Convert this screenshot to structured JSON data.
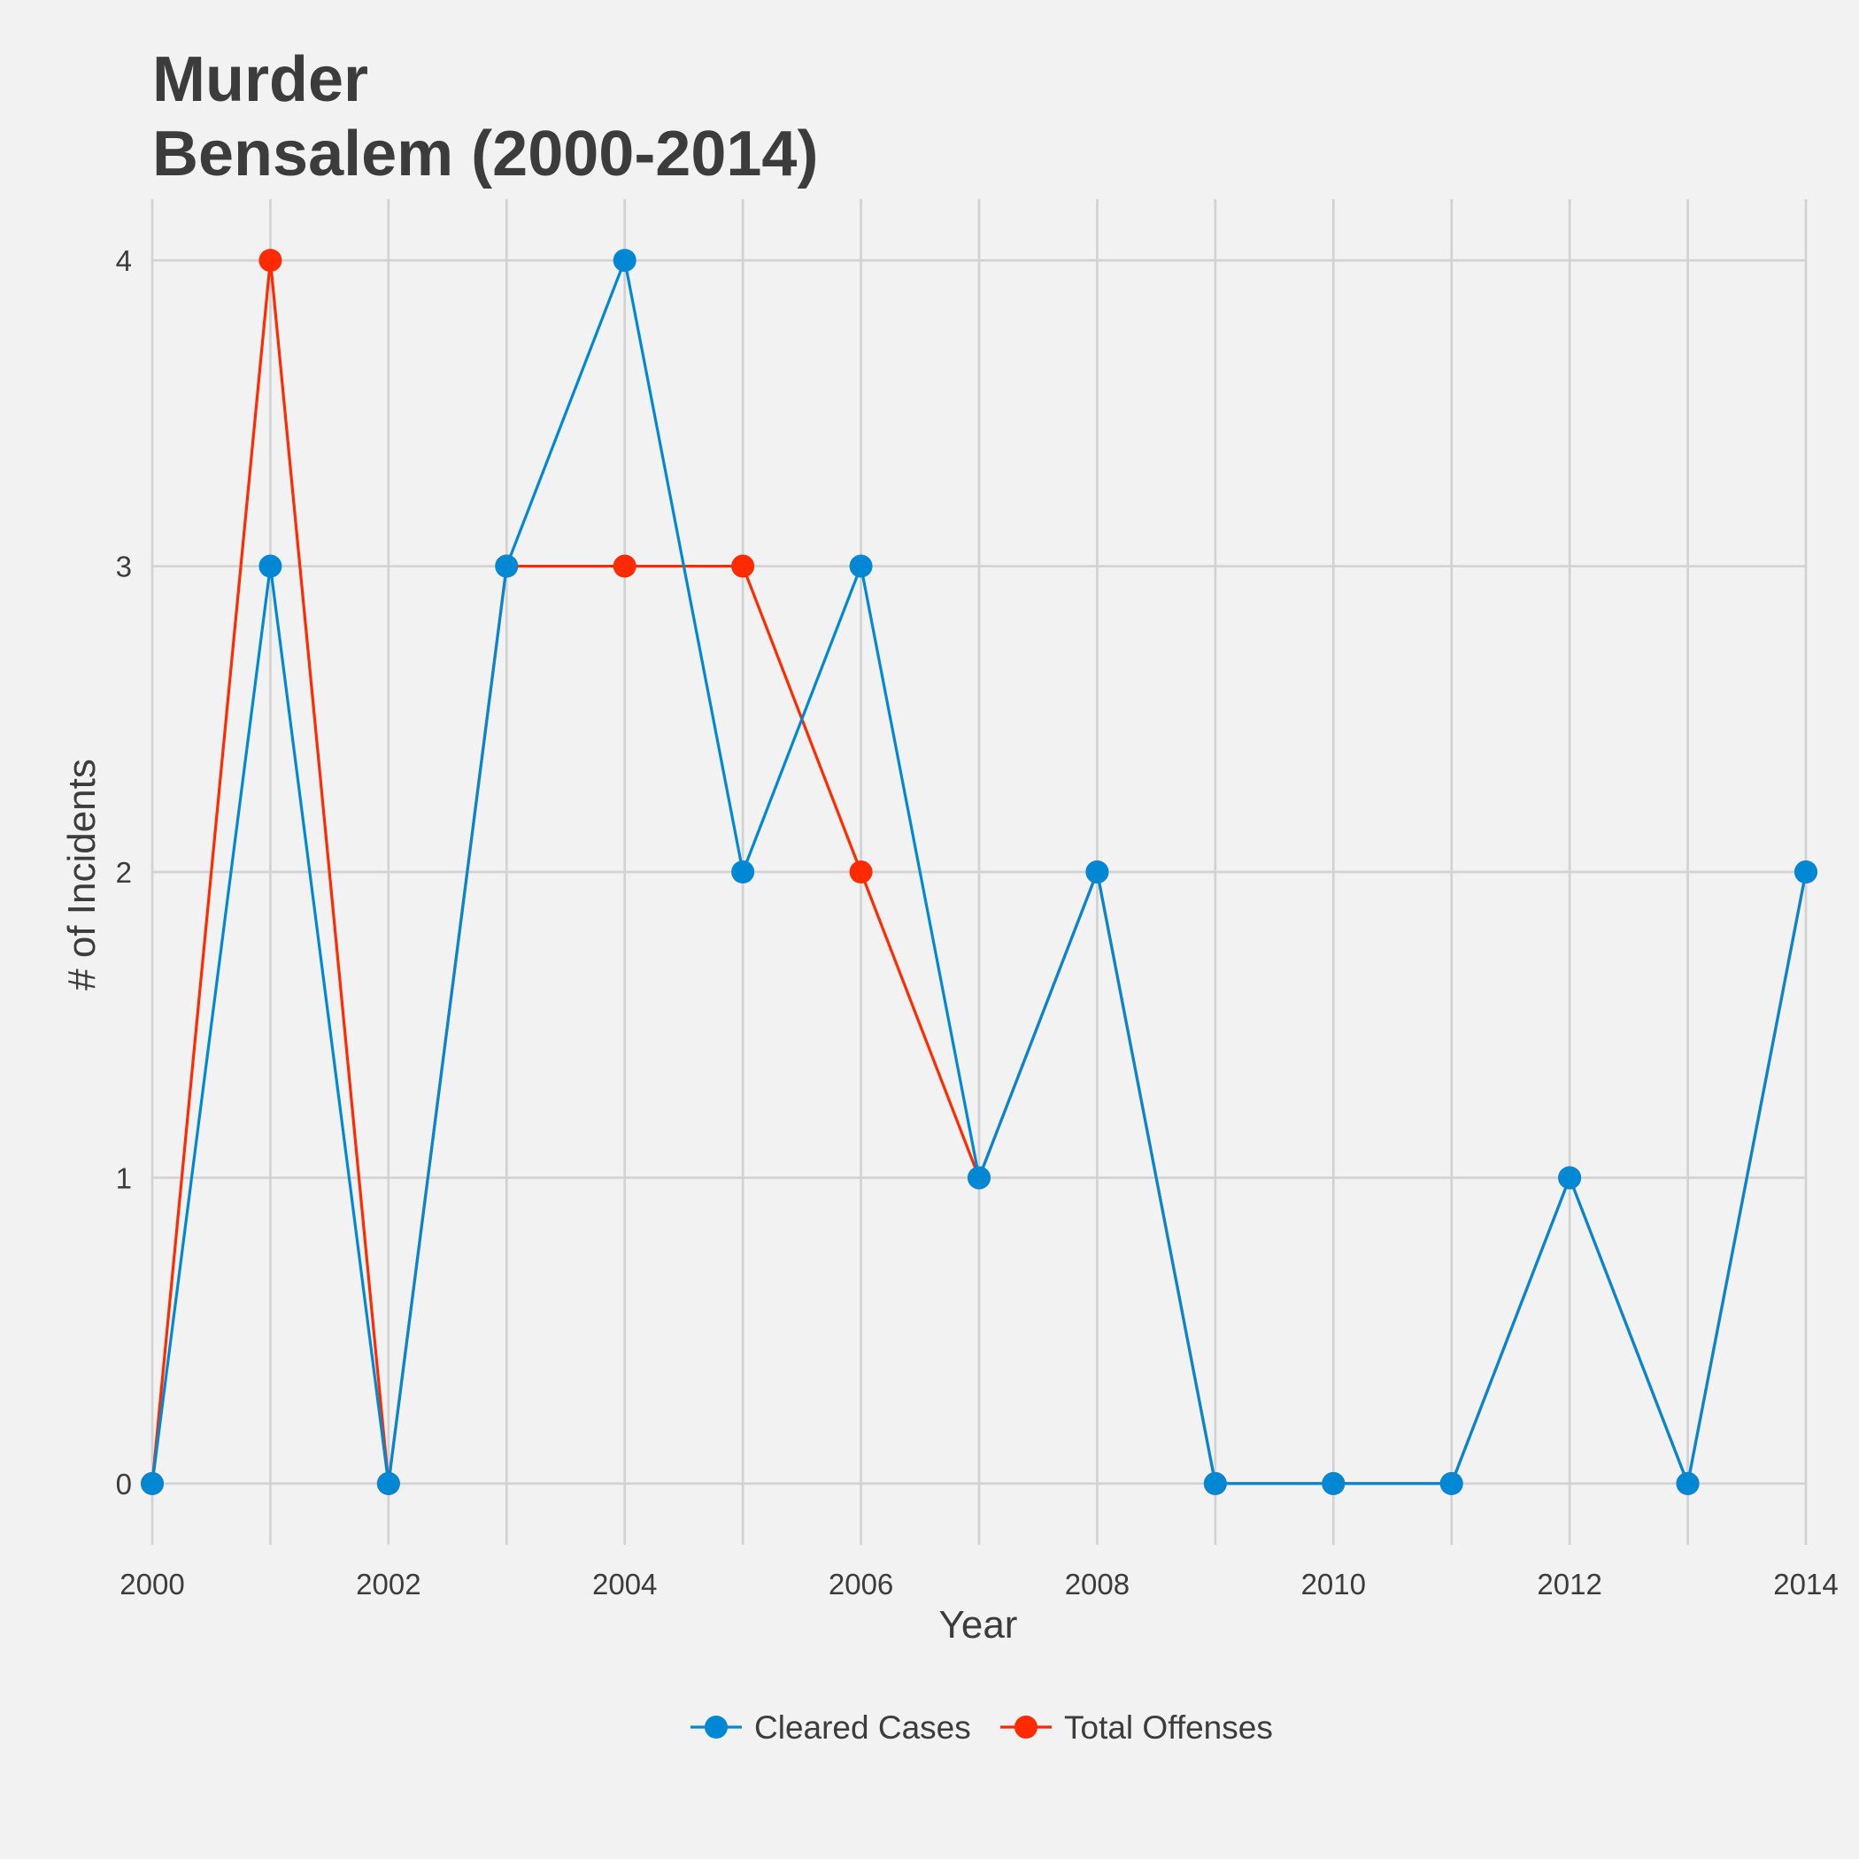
{
  "chart_data": {
    "type": "line",
    "title": "Murder",
    "subtitle": "Bensalem (2000-2014)",
    "xlabel": "Year",
    "ylabel": "# of Incidents",
    "x": [
      2000,
      2001,
      2002,
      2003,
      2004,
      2005,
      2006,
      2007,
      2008,
      2009,
      2010,
      2011,
      2012,
      2013,
      2014
    ],
    "x_ticks": [
      2000,
      2002,
      2004,
      2006,
      2008,
      2010,
      2012,
      2014
    ],
    "y_ticks": [
      0,
      1,
      2,
      3,
      4
    ],
    "xlim": [
      2000,
      2014
    ],
    "ylim": [
      -0.2,
      4.2
    ],
    "grid": true,
    "legend_position": "bottom",
    "series": [
      {
        "name": "Total Offenses",
        "color": "#ff2a00",
        "values": [
          0,
          4,
          0,
          3,
          3,
          3,
          2,
          1,
          2,
          0,
          0,
          0,
          1,
          0,
          2
        ]
      },
      {
        "name": "Cleared Cases",
        "color": "#0088d4",
        "values": [
          0,
          3,
          0,
          3,
          4,
          2,
          3,
          1,
          2,
          0,
          0,
          0,
          1,
          0,
          2
        ]
      }
    ],
    "legend_order": [
      "Cleared Cases",
      "Total Offenses"
    ]
  }
}
